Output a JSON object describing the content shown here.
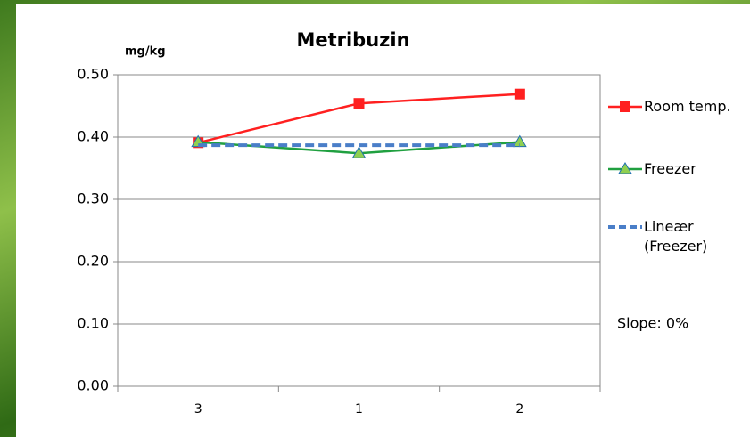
{
  "chart_data": {
    "type": "line",
    "title": "Metribuzin",
    "y_unit": "mg/kg",
    "categories": [
      "3",
      "1",
      "2"
    ],
    "series": [
      {
        "name": "Room temp.",
        "color": "#ff2020",
        "marker": "square",
        "values": [
          0.391,
          0.454,
          0.469
        ]
      },
      {
        "name": "Freezer",
        "color": "#20a040",
        "marker": "triangle",
        "values": [
          0.392,
          0.374,
          0.392
        ]
      },
      {
        "name": "Lineær (Freezer)",
        "color": "#4a7ec8",
        "dashed": true,
        "values": [
          0.387,
          0.387,
          0.387
        ]
      }
    ],
    "annotation": "Slope:  0%",
    "ylim": [
      0,
      0.5
    ],
    "yticks": [
      {
        "value": 0,
        "label": "0.00"
      },
      {
        "value": 0.1,
        "label": "0.10"
      },
      {
        "value": 0.2,
        "label": "0.20"
      },
      {
        "value": 0.3,
        "label": "0.30"
      },
      {
        "value": 0.4,
        "label": "0.40"
      },
      {
        "value": 0.5,
        "label": "0.50"
      }
    ],
    "grid": true
  }
}
